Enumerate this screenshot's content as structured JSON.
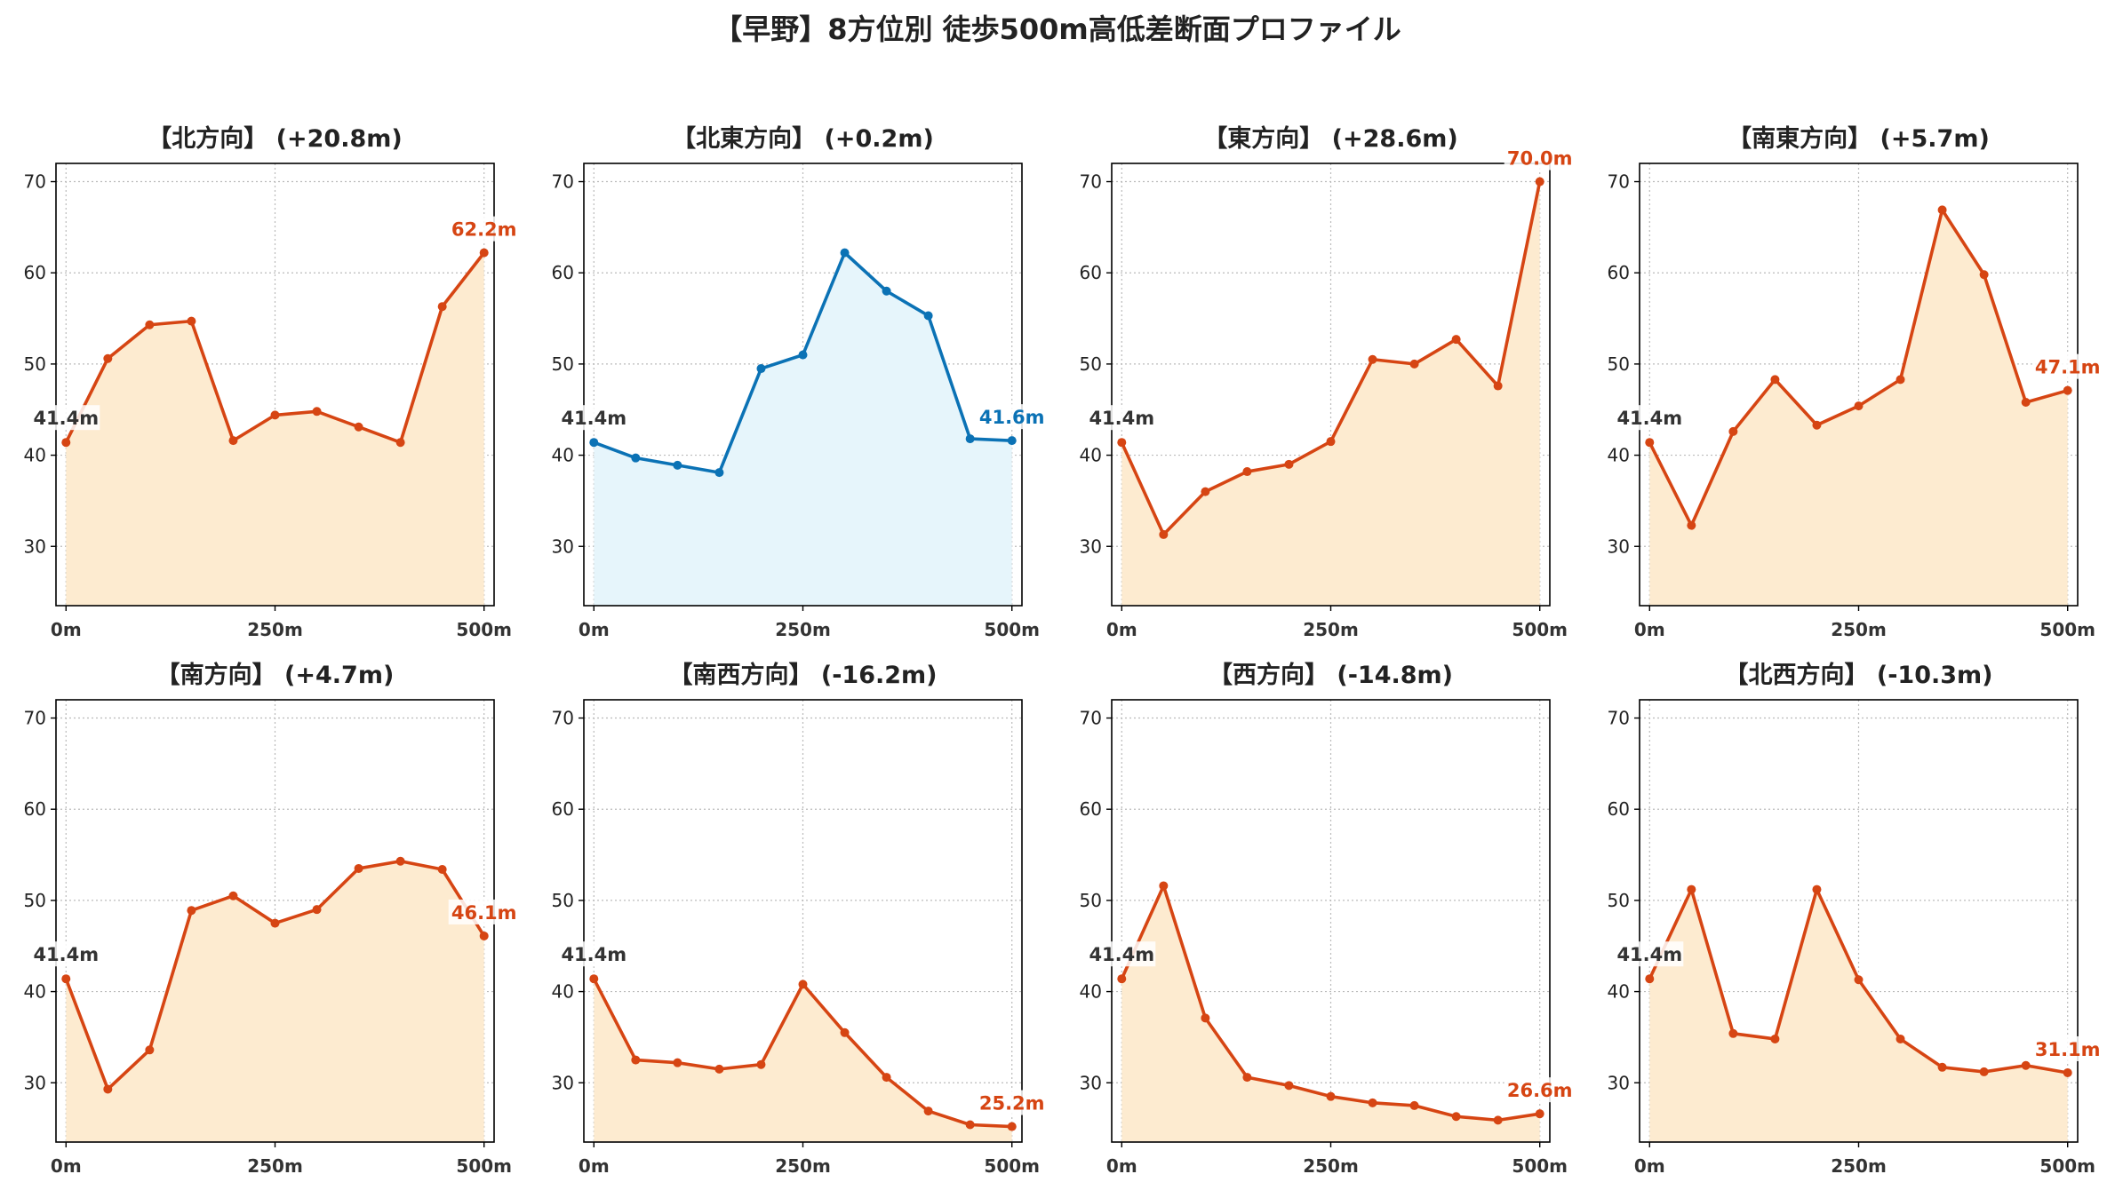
{
  "title": "【早野】8方位別 徒歩500m高低差断面プロファイル",
  "colors": {
    "up": "#d64513",
    "up_fill": "#fdebd0",
    "flat": "#0b72b5",
    "flat_fill": "#e6f5fb",
    "start_label": "#333333",
    "axis": "#000000",
    "grid": "#bbbbbb"
  },
  "chart_data": [
    {
      "type": "area",
      "title": "【北方向】 (+20.8m)",
      "x": [
        0,
        50,
        100,
        150,
        200,
        250,
        300,
        350,
        400,
        450,
        500
      ],
      "y": [
        41.4,
        50.6,
        54.3,
        54.7,
        41.6,
        44.4,
        44.8,
        43.1,
        41.4,
        56.3,
        62.2
      ],
      "xticks": [
        "0m",
        "250m",
        "500m"
      ],
      "yticks": [
        30,
        40,
        50,
        60,
        70
      ],
      "ylim": [
        23.5,
        72
      ],
      "xlim": [
        -12,
        512
      ],
      "grid": true,
      "start_label": "41.4m",
      "end_label": "62.2m",
      "style": "up"
    },
    {
      "type": "area",
      "title": "【北東方向】 (+0.2m)",
      "x": [
        0,
        50,
        100,
        150,
        200,
        250,
        300,
        350,
        400,
        450,
        500
      ],
      "y": [
        41.4,
        39.7,
        38.9,
        38.1,
        49.5,
        51.0,
        62.2,
        58.0,
        55.3,
        41.8,
        41.6
      ],
      "xticks": [
        "0m",
        "250m",
        "500m"
      ],
      "yticks": [
        30,
        40,
        50,
        60,
        70
      ],
      "ylim": [
        23.5,
        72
      ],
      "xlim": [
        -12,
        512
      ],
      "grid": true,
      "start_label": "41.4m",
      "end_label": "41.6m",
      "style": "flat"
    },
    {
      "type": "area",
      "title": "【東方向】 (+28.6m)",
      "x": [
        0,
        50,
        100,
        150,
        200,
        250,
        300,
        350,
        400,
        450,
        500
      ],
      "y": [
        41.4,
        31.3,
        36.0,
        38.2,
        39.0,
        41.5,
        50.5,
        50.0,
        52.7,
        47.6,
        70.0
      ],
      "xticks": [
        "0m",
        "250m",
        "500m"
      ],
      "yticks": [
        30,
        40,
        50,
        60,
        70
      ],
      "ylim": [
        23.5,
        72
      ],
      "xlim": [
        -12,
        512
      ],
      "grid": true,
      "start_label": "41.4m",
      "end_label": "70.0m",
      "style": "up"
    },
    {
      "type": "area",
      "title": "【南東方向】 (+5.7m)",
      "x": [
        0,
        50,
        100,
        150,
        200,
        250,
        300,
        350,
        400,
        450,
        500
      ],
      "y": [
        41.4,
        32.3,
        42.6,
        48.3,
        43.3,
        45.4,
        48.3,
        66.9,
        59.8,
        45.8,
        47.1
      ],
      "xticks": [
        "0m",
        "250m",
        "500m"
      ],
      "yticks": [
        30,
        40,
        50,
        60,
        70
      ],
      "ylim": [
        23.5,
        72
      ],
      "xlim": [
        -12,
        512
      ],
      "grid": true,
      "start_label": "41.4m",
      "end_label": "47.1m",
      "style": "up"
    },
    {
      "type": "area",
      "title": "【南方向】 (+4.7m)",
      "x": [
        0,
        50,
        100,
        150,
        200,
        250,
        300,
        350,
        400,
        450,
        500
      ],
      "y": [
        41.4,
        29.3,
        33.6,
        48.9,
        50.5,
        47.5,
        49.0,
        53.5,
        54.3,
        53.4,
        46.1
      ],
      "xticks": [
        "0m",
        "250m",
        "500m"
      ],
      "yticks": [
        30,
        40,
        50,
        60,
        70
      ],
      "ylim": [
        23.5,
        72
      ],
      "xlim": [
        -12,
        512
      ],
      "grid": true,
      "start_label": "41.4m",
      "end_label": "46.1m",
      "style": "up"
    },
    {
      "type": "area",
      "title": "【南西方向】 (-16.2m)",
      "x": [
        0,
        50,
        100,
        150,
        200,
        250,
        300,
        350,
        400,
        450,
        500
      ],
      "y": [
        41.4,
        32.5,
        32.2,
        31.5,
        32.0,
        40.8,
        35.5,
        30.6,
        26.9,
        25.4,
        25.2
      ],
      "xticks": [
        "0m",
        "250m",
        "500m"
      ],
      "yticks": [
        30,
        40,
        50,
        60,
        70
      ],
      "ylim": [
        23.5,
        72
      ],
      "xlim": [
        -12,
        512
      ],
      "grid": true,
      "start_label": "41.4m",
      "end_label": "25.2m",
      "style": "up"
    },
    {
      "type": "area",
      "title": "【西方向】 (-14.8m)",
      "x": [
        0,
        50,
        100,
        150,
        200,
        250,
        300,
        350,
        400,
        450,
        500
      ],
      "y": [
        41.4,
        51.6,
        37.1,
        30.6,
        29.7,
        28.5,
        27.8,
        27.5,
        26.3,
        25.9,
        26.6
      ],
      "xticks": [
        "0m",
        "250m",
        "500m"
      ],
      "yticks": [
        30,
        40,
        50,
        60,
        70
      ],
      "ylim": [
        23.5,
        72
      ],
      "xlim": [
        -12,
        512
      ],
      "grid": true,
      "start_label": "41.4m",
      "end_label": "26.6m",
      "style": "up"
    },
    {
      "type": "area",
      "title": "【北西方向】 (-10.3m)",
      "x": [
        0,
        50,
        100,
        150,
        200,
        250,
        300,
        350,
        400,
        450,
        500
      ],
      "y": [
        41.4,
        51.2,
        35.4,
        34.8,
        51.2,
        41.3,
        34.8,
        31.7,
        31.2,
        31.9,
        31.1
      ],
      "xticks": [
        "0m",
        "250m",
        "500m"
      ],
      "yticks": [
        30,
        40,
        50,
        60,
        70
      ],
      "ylim": [
        23.5,
        72
      ],
      "xlim": [
        -12,
        512
      ],
      "grid": true,
      "start_label": "41.4m",
      "end_label": "31.1m",
      "style": "up"
    }
  ]
}
